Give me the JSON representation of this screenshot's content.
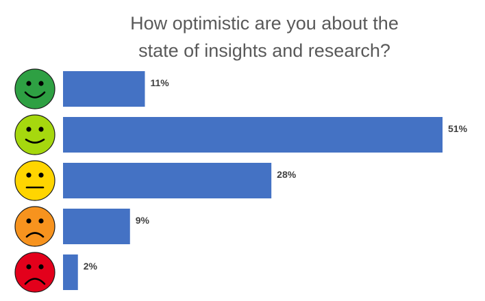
{
  "chart_data": {
    "type": "bar",
    "orientation": "horizontal",
    "title_lines": [
      "How optimistic are you about the",
      "state of insights and research?"
    ],
    "categories": [
      "very-happy-face",
      "happy-face",
      "neutral-face",
      "sad-face",
      "very-sad-face"
    ],
    "values": [
      11,
      51,
      28,
      9,
      2
    ],
    "value_labels": [
      "11%",
      "51%",
      "28%",
      "9%",
      "2%"
    ],
    "bar_color": "#4472C4",
    "face_colors": [
      "#2EA043",
      "#A6D80E",
      "#FFD500",
      "#F7931E",
      "#E3001B"
    ],
    "xlim": [
      0,
      51
    ],
    "grid": false,
    "legend": "none"
  }
}
